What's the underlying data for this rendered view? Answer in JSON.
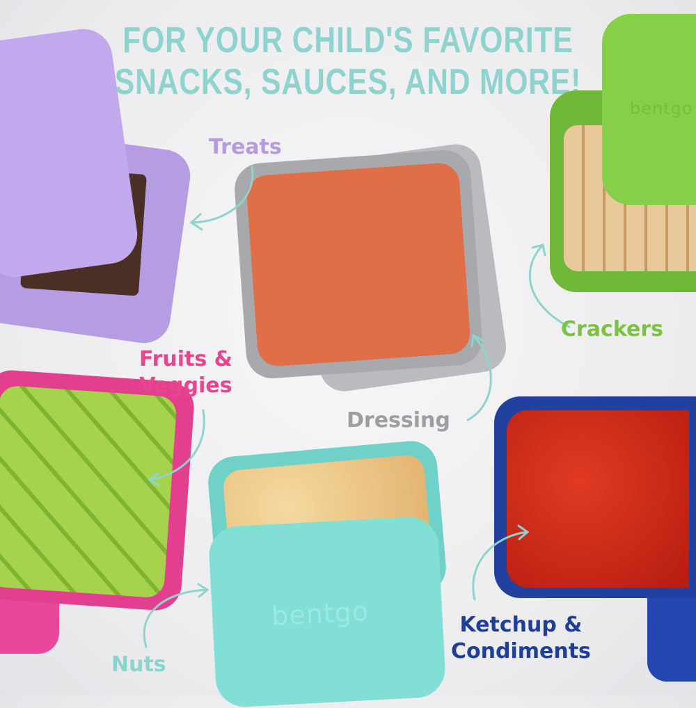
{
  "headline": {
    "line1": "FOR YOUR CHILD'S FAVORITE",
    "line2": "SNACKS, SAUCES, AND MORE!",
    "color": "#8fd3cf"
  },
  "brand": "bentgo",
  "labels": [
    {
      "key": "treats",
      "text": "Treats",
      "color": "#b79be0"
    },
    {
      "key": "crackers",
      "text": "Crackers",
      "color": "#7cc242"
    },
    {
      "key": "fruits",
      "line1": "Fruits &",
      "line2": "Veggies",
      "color": "#e9458f"
    },
    {
      "key": "dressing",
      "text": "Dressing",
      "color": "#9d9ea2"
    },
    {
      "key": "nuts",
      "text": "Nuts",
      "color": "#86d5cf"
    },
    {
      "key": "ketchup",
      "line1": "Ketchup &",
      "line2": "Condiments",
      "color": "#1e3f95"
    }
  ],
  "containers": [
    {
      "key": "treats",
      "color": "#b9a0e6",
      "content": "brownie with almonds"
    },
    {
      "key": "crackers",
      "color": "#7dc443",
      "content": "crackers"
    },
    {
      "key": "dressing",
      "color": "#a9abaf",
      "content": "dressing"
    },
    {
      "key": "fruits",
      "color": "#e2408f",
      "content": "kiwi"
    },
    {
      "key": "nuts",
      "color": "#78d9d0",
      "content": "peanuts"
    },
    {
      "key": "ketchup",
      "color": "#22409e",
      "content": "ketchup"
    }
  ],
  "arrow_color": "#8fd3cf"
}
